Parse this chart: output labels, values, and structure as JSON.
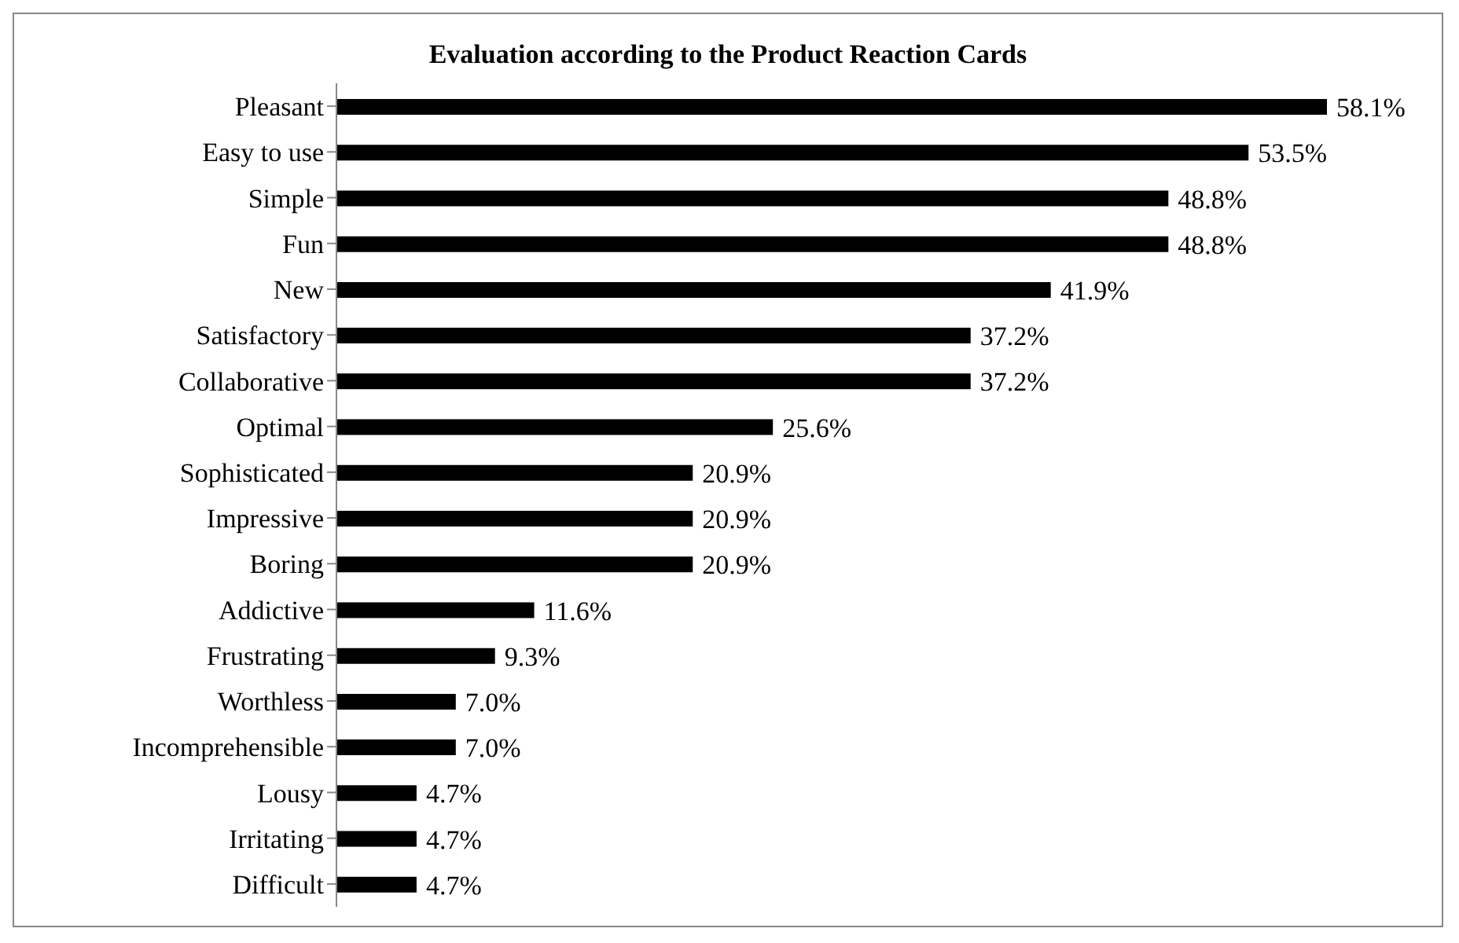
{
  "chart_data": {
    "type": "bar",
    "orientation": "horizontal",
    "title": "Evaluation according to the Product Reaction Cards",
    "categories": [
      "Pleasant",
      "Easy to use",
      "Simple",
      "Fun",
      "New",
      "Satisfactory",
      "Collaborative",
      "Optimal",
      "Sophisticated",
      "Impressive",
      "Boring",
      "Addictive",
      "Frustrating",
      "Worthless",
      "Incomprehensible",
      "Lousy",
      "Irritating",
      "Difficult"
    ],
    "values": [
      58.1,
      53.5,
      48.8,
      48.8,
      41.9,
      37.2,
      37.2,
      25.6,
      20.9,
      20.9,
      20.9,
      11.6,
      9.3,
      7.0,
      7.0,
      4.7,
      4.7,
      4.7
    ],
    "value_labels": [
      "58.1%",
      "53.5%",
      "48.8%",
      "48.8%",
      "41.9%",
      "37.2%",
      "37.2%",
      "25.6%",
      "20.9%",
      "20.9%",
      "20.9%",
      "11.6%",
      "9.3%",
      "7.0%",
      "7.0%",
      "4.7%",
      "4.7%",
      "4.7%"
    ],
    "color": "#000000",
    "tick_labels": "y"
  }
}
